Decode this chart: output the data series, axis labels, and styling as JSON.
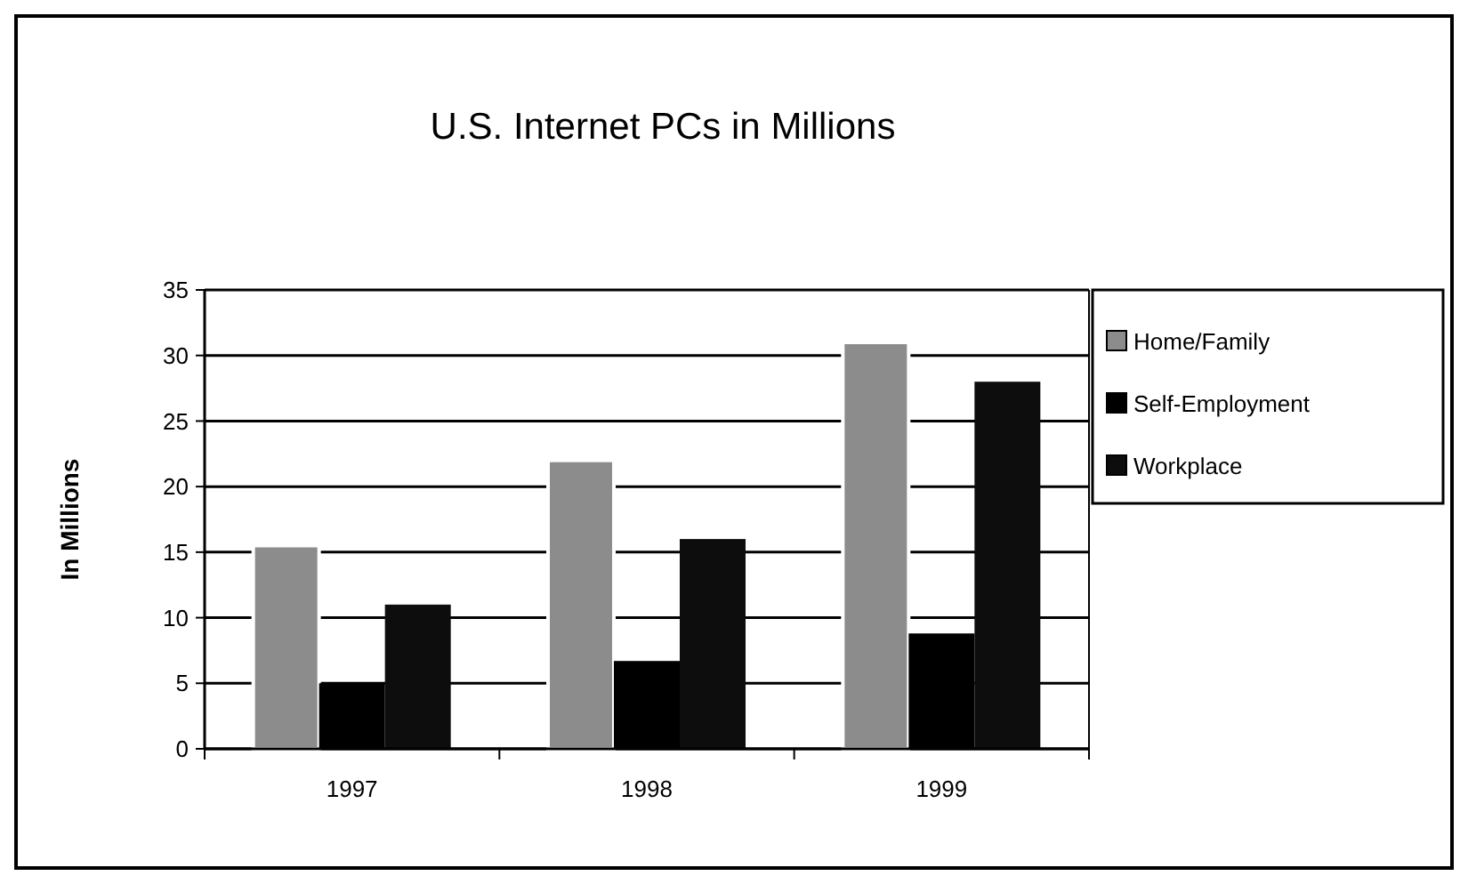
{
  "chart_data": {
    "type": "bar",
    "title": "U.S. Internet PCs in Millions",
    "ylabel": "In Millions",
    "categories": [
      "1997",
      "1998",
      "1999"
    ],
    "series": [
      {
        "name": "Home/Family",
        "color": "#8c8c8c",
        "values": [
          15.5,
          22,
          31
        ]
      },
      {
        "name": "Self-Employment",
        "color": "#000000",
        "values": [
          5,
          6.7,
          8.8
        ]
      },
      {
        "name": "Workplace",
        "color": "#0d0d0d",
        "values": [
          11,
          16,
          28
        ]
      }
    ],
    "ylim": [
      0,
      35
    ],
    "yticks": [
      0,
      5,
      10,
      15,
      20,
      25,
      30,
      35
    ],
    "grid": "y",
    "legend": "right"
  }
}
